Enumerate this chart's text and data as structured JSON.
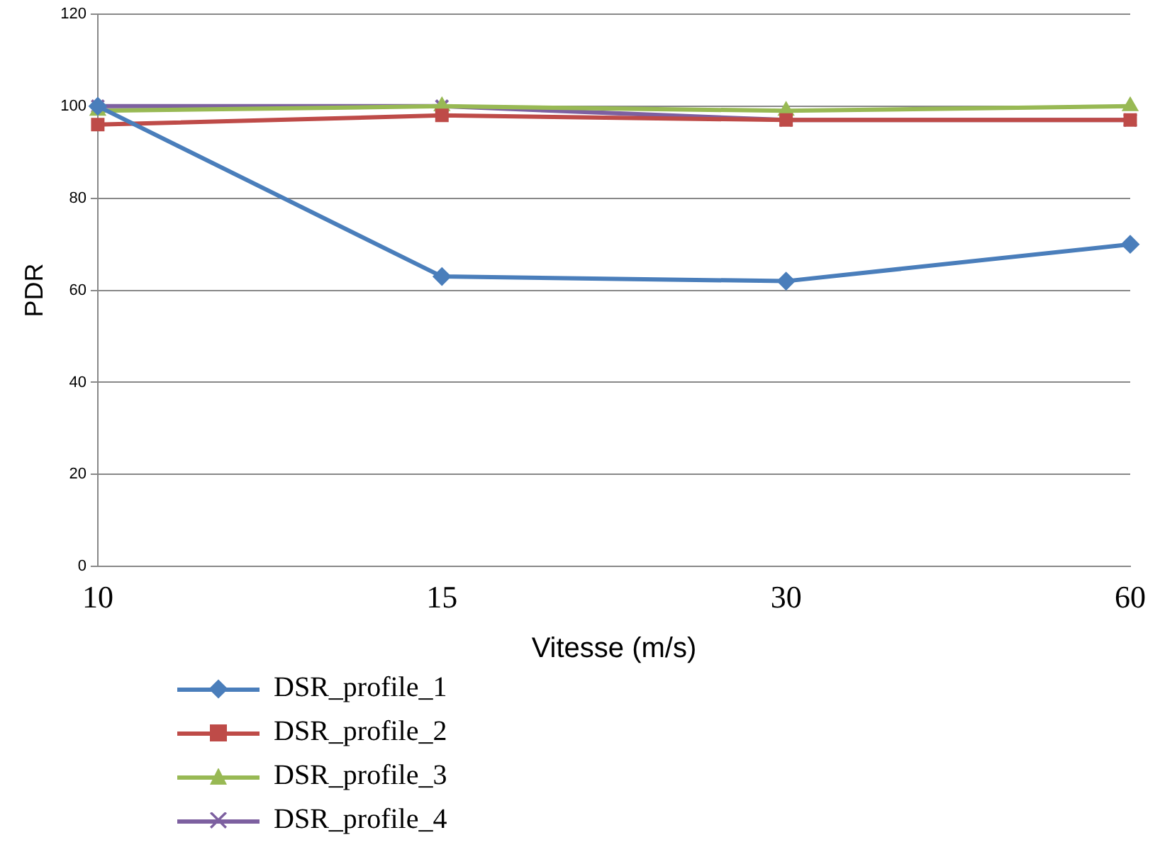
{
  "chart_data": {
    "type": "line",
    "xlabel": "Vitesse (m/s)",
    "ylabel": "PDR",
    "categories": [
      "10",
      "15",
      "30",
      "60"
    ],
    "series": [
      {
        "name": "DSR_profile_1",
        "color": "#4a7ebb",
        "marker": "diamond",
        "values": [
          100,
          63,
          62,
          70
        ]
      },
      {
        "name": "DSR_profile_2",
        "color": "#be4b48",
        "marker": "square",
        "values": [
          96,
          98,
          97,
          97
        ]
      },
      {
        "name": "DSR_profile_3",
        "color": "#98b954",
        "marker": "triangle",
        "values": [
          99,
          100,
          99,
          100
        ]
      },
      {
        "name": "DSR_profile_4",
        "color": "#7d60a0",
        "marker": "cross",
        "values": [
          100,
          100,
          97,
          97
        ]
      }
    ],
    "ylim": [
      0,
      120
    ],
    "yticks": [
      0,
      20,
      40,
      60,
      80,
      100,
      120
    ],
    "grid": "y",
    "legend": "bottom left",
    "line_style": "solid"
  }
}
